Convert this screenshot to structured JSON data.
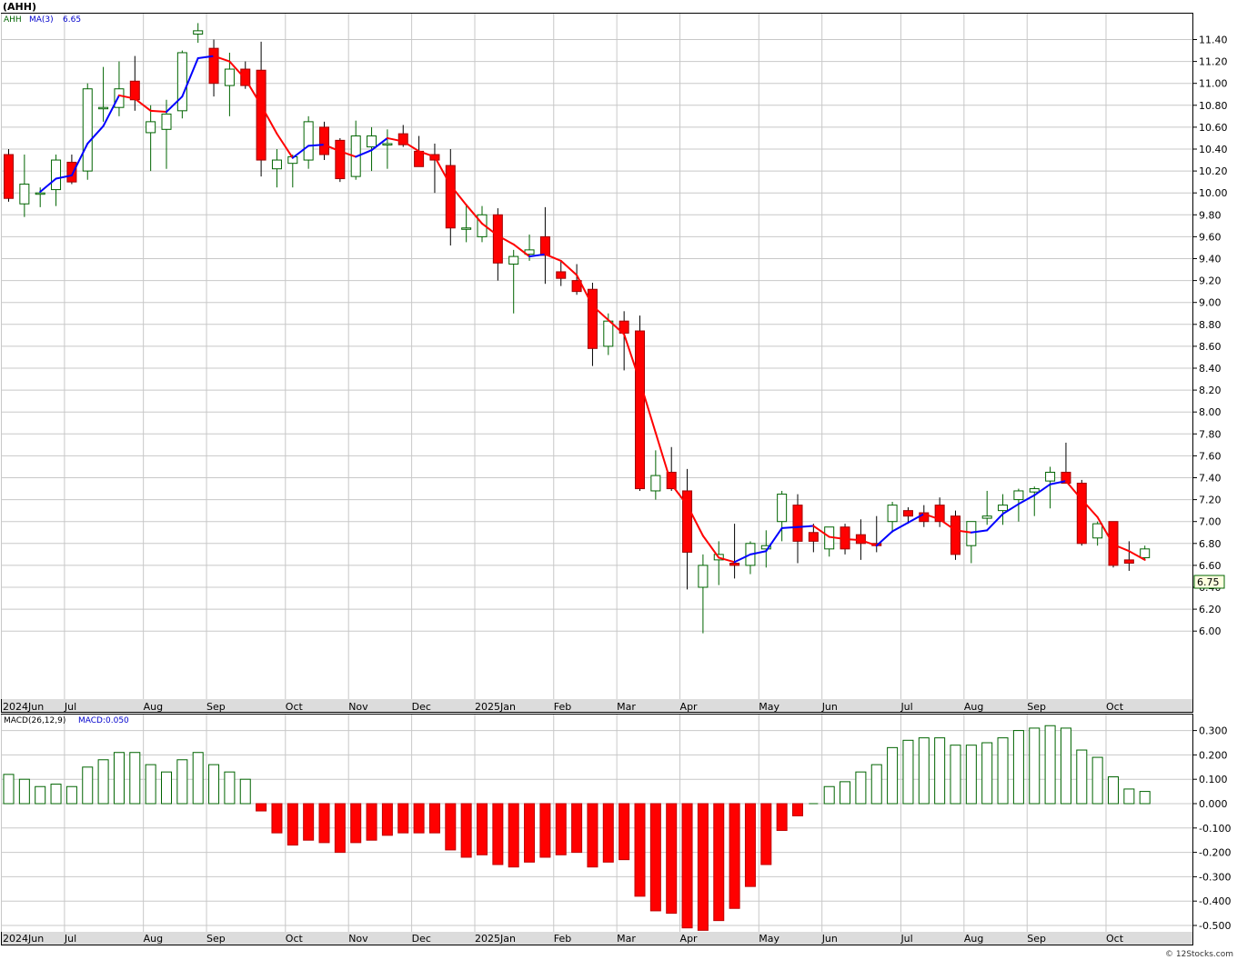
{
  "symbol": "(AHH)",
  "legend": {
    "ticker": "AHH",
    "ma_label": "MA(3)",
    "ma_value": "6.65",
    "macd_params": "MACD(26,12,9)",
    "macd_label": "MACD:0.050"
  },
  "last_price_tag": "6.75",
  "watermark": "© 12Stocks.com",
  "colors": {
    "up_body": "#ffffff",
    "up_stroke": "#006400",
    "down_body": "#ff0000",
    "down_stroke": "#a00000",
    "ma_up": "#0000ff",
    "ma_down": "#ff0000",
    "grid": "#c8c8c8",
    "macd_pos": "#006400",
    "macd_neg": "#ff0000",
    "axis_band": "#dcdcdc"
  },
  "chart_data": [
    {
      "type": "candlestick",
      "title": "(AHH)",
      "x_labels": [
        "2024Jun",
        "Jul",
        "Aug",
        "Sep",
        "Oct",
        "Nov",
        "Dec",
        "2025Jan",
        "Feb",
        "Mar",
        "Apr",
        "May",
        "Jun",
        "Jul",
        "Aug",
        "Sep",
        "Oct"
      ],
      "month_index": [
        0,
        4,
        9,
        13,
        18,
        22,
        26,
        30,
        35,
        39,
        43,
        48,
        52,
        57,
        61,
        65,
        70
      ],
      "ylim": [
        6.0,
        11.5
      ],
      "y_ticks": [
        "11.40",
        "11.20",
        "11.00",
        "10.80",
        "10.60",
        "10.40",
        "10.20",
        "10.00",
        "9.80",
        "9.60",
        "9.40",
        "9.20",
        "9.00",
        "8.80",
        "8.60",
        "8.40",
        "8.20",
        "8.00",
        "7.80",
        "7.60",
        "7.40",
        "7.20",
        "7.00",
        "6.80",
        "6.60",
        "6.40",
        "6.20",
        "6.00"
      ],
      "grid": true,
      "ohlc": [
        [
          10.35,
          10.4,
          9.92,
          9.95
        ],
        [
          9.9,
          10.35,
          9.78,
          10.08
        ],
        [
          10.0,
          10.05,
          9.87,
          10.0
        ],
        [
          10.03,
          10.35,
          9.88,
          10.3
        ],
        [
          10.28,
          10.35,
          10.08,
          10.1
        ],
        [
          10.2,
          11.0,
          10.12,
          10.95
        ],
        [
          10.78,
          11.15,
          10.65,
          10.78
        ],
        [
          10.78,
          11.2,
          10.7,
          10.95
        ],
        [
          11.02,
          11.25,
          10.75,
          10.85
        ],
        [
          10.55,
          10.8,
          10.2,
          10.65
        ],
        [
          10.58,
          10.85,
          10.22,
          10.72
        ],
        [
          10.75,
          11.3,
          10.68,
          11.28
        ],
        [
          11.45,
          11.55,
          11.37,
          11.48
        ],
        [
          11.32,
          11.4,
          10.88,
          11.0
        ],
        [
          10.98,
          11.28,
          10.7,
          11.13
        ],
        [
          11.13,
          11.2,
          10.95,
          10.98
        ],
        [
          11.12,
          11.38,
          10.15,
          10.3
        ],
        [
          10.22,
          10.4,
          10.05,
          10.3
        ],
        [
          10.27,
          10.35,
          10.05,
          10.33
        ],
        [
          10.3,
          10.7,
          10.22,
          10.65
        ],
        [
          10.6,
          10.65,
          10.3,
          10.35
        ],
        [
          10.48,
          10.5,
          10.1,
          10.13
        ],
        [
          10.15,
          10.66,
          10.12,
          10.52
        ],
        [
          10.42,
          10.6,
          10.2,
          10.52
        ],
        [
          10.45,
          10.58,
          10.22,
          10.45
        ],
        [
          10.54,
          10.62,
          10.42,
          10.44
        ],
        [
          10.38,
          10.52,
          10.25,
          10.24
        ],
        [
          10.35,
          10.45,
          10.0,
          10.3
        ],
        [
          10.25,
          10.4,
          9.52,
          9.68
        ],
        [
          9.68,
          9.9,
          9.55,
          9.68
        ],
        [
          9.6,
          9.88,
          9.55,
          9.8
        ],
        [
          9.8,
          9.86,
          9.2,
          9.36
        ],
        [
          9.35,
          9.48,
          8.9,
          9.42
        ],
        [
          9.44,
          9.62,
          9.38,
          9.48
        ],
        [
          9.6,
          9.87,
          9.17,
          9.43
        ],
        [
          9.28,
          9.38,
          9.15,
          9.22
        ],
        [
          9.2,
          9.35,
          9.07,
          9.1
        ],
        [
          9.12,
          9.18,
          8.42,
          8.58
        ],
        [
          8.6,
          8.9,
          8.52,
          8.83
        ],
        [
          8.83,
          8.92,
          8.38,
          8.72
        ],
        [
          8.74,
          8.88,
          7.28,
          7.3
        ],
        [
          7.28,
          7.65,
          7.2,
          7.42
        ],
        [
          7.45,
          7.68,
          7.28,
          7.3
        ],
        [
          7.28,
          7.48,
          6.38,
          6.72
        ],
        [
          6.4,
          6.7,
          5.98,
          6.6
        ],
        [
          6.65,
          6.82,
          6.42,
          6.7
        ],
        [
          6.62,
          6.98,
          6.48,
          6.6
        ],
        [
          6.6,
          6.82,
          6.52,
          6.8
        ],
        [
          6.75,
          6.92,
          6.58,
          6.78
        ],
        [
          7.0,
          7.28,
          6.82,
          7.25
        ],
        [
          7.15,
          7.25,
          6.62,
          6.82
        ],
        [
          6.9,
          6.98,
          6.72,
          6.82
        ],
        [
          6.75,
          6.95,
          6.68,
          6.95
        ],
        [
          6.95,
          6.98,
          6.7,
          6.75
        ],
        [
          6.88,
          7.02,
          6.65,
          6.8
        ],
        [
          6.8,
          7.05,
          6.72,
          6.78
        ],
        [
          7.0,
          7.18,
          6.9,
          7.15
        ],
        [
          7.1,
          7.13,
          6.98,
          7.05
        ],
        [
          7.08,
          7.15,
          6.95,
          7.0
        ],
        [
          7.15,
          7.22,
          6.95,
          7.0
        ],
        [
          7.05,
          7.1,
          6.65,
          6.7
        ],
        [
          6.78,
          7.0,
          6.62,
          7.0
        ],
        [
          7.03,
          7.28,
          6.97,
          7.05
        ],
        [
          7.1,
          7.25,
          6.97,
          7.15
        ],
        [
          7.2,
          7.3,
          7.0,
          7.28
        ],
        [
          7.27,
          7.32,
          7.05,
          7.3
        ],
        [
          7.37,
          7.5,
          7.12,
          7.45
        ],
        [
          7.45,
          7.72,
          7.35,
          7.35
        ],
        [
          7.35,
          7.38,
          6.78,
          6.8
        ],
        [
          6.85,
          7.0,
          6.78,
          6.98
        ],
        [
          7.0,
          7.0,
          6.58,
          6.6
        ],
        [
          6.65,
          6.82,
          6.55,
          6.62
        ],
        [
          6.67,
          6.78,
          6.65,
          6.75
        ]
      ],
      "series": [
        {
          "name": "MA(3)",
          "values": [
            null,
            null,
            10.01,
            10.13,
            10.16,
            10.45,
            10.61,
            10.89,
            10.86,
            10.75,
            10.74,
            10.88,
            11.23,
            11.25,
            11.2,
            11.04,
            10.8,
            10.54,
            10.32,
            10.43,
            10.44,
            10.38,
            10.33,
            10.39,
            10.5,
            10.47,
            10.38,
            10.33,
            10.07,
            9.89,
            9.72,
            9.61,
            9.53,
            9.42,
            9.44,
            9.38,
            9.25,
            8.97,
            8.84,
            8.71,
            8.28,
            7.81,
            7.34,
            7.15,
            6.87,
            6.67,
            6.63,
            6.7,
            6.73,
            6.94,
            6.95,
            6.96,
            6.86,
            6.84,
            6.83,
            6.78,
            6.91,
            6.99,
            7.07,
            7.02,
            6.92,
            6.9,
            6.92,
            7.07,
            7.16,
            7.24,
            7.34,
            7.37,
            7.2,
            7.04,
            6.79,
            6.73,
            6.65
          ]
        }
      ]
    },
    {
      "type": "bar",
      "title": "MACD(26,12,9)",
      "ylim": [
        -0.52,
        0.34
      ],
      "y_ticks": [
        "0.300",
        "0.200",
        "0.100",
        "0.000",
        "-0.100",
        "-0.200",
        "-0.300",
        "-0.400",
        "-0.500"
      ],
      "grid": true,
      "series": [
        {
          "name": "MACD",
          "values": [
            0.12,
            0.1,
            0.07,
            0.08,
            0.07,
            0.15,
            0.18,
            0.21,
            0.21,
            0.16,
            0.13,
            0.18,
            0.21,
            0.16,
            0.13,
            0.1,
            -0.03,
            -0.12,
            -0.17,
            -0.15,
            -0.16,
            -0.2,
            -0.16,
            -0.15,
            -0.13,
            -0.12,
            -0.12,
            -0.12,
            -0.19,
            -0.22,
            -0.21,
            -0.25,
            -0.26,
            -0.24,
            -0.22,
            -0.21,
            -0.2,
            -0.26,
            -0.24,
            -0.23,
            -0.38,
            -0.44,
            -0.45,
            -0.51,
            -0.52,
            -0.48,
            -0.43,
            -0.34,
            -0.25,
            -0.11,
            -0.05,
            0.0,
            0.07,
            0.09,
            0.13,
            0.16,
            0.23,
            0.26,
            0.27,
            0.27,
            0.24,
            0.24,
            0.25,
            0.27,
            0.3,
            0.31,
            0.32,
            0.31,
            0.22,
            0.19,
            0.11,
            0.06,
            0.05
          ]
        }
      ]
    }
  ]
}
